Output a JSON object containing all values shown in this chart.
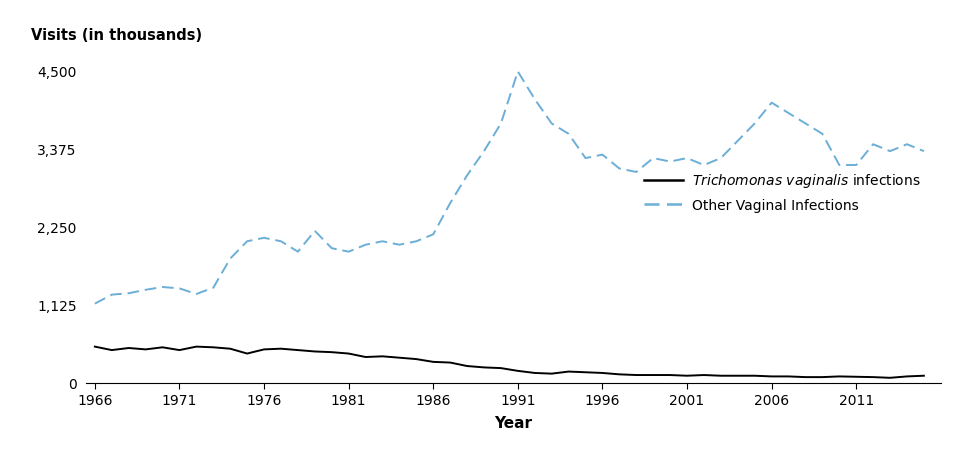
{
  "years": [
    1966,
    1967,
    1968,
    1969,
    1970,
    1971,
    1972,
    1973,
    1974,
    1975,
    1976,
    1977,
    1978,
    1979,
    1980,
    1981,
    1982,
    1983,
    1984,
    1985,
    1986,
    1987,
    1988,
    1989,
    1990,
    1991,
    1992,
    1993,
    1994,
    1995,
    1996,
    1997,
    1998,
    1999,
    2000,
    2001,
    2002,
    2003,
    2004,
    2005,
    2006,
    2007,
    2008,
    2009,
    2010,
    2011,
    2012,
    2013,
    2014,
    2015
  ],
  "trichomonas": [
    530,
    480,
    510,
    490,
    520,
    480,
    530,
    520,
    500,
    430,
    490,
    500,
    480,
    460,
    450,
    430,
    380,
    390,
    370,
    350,
    310,
    300,
    250,
    230,
    220,
    180,
    150,
    140,
    170,
    160,
    150,
    130,
    120,
    120,
    120,
    110,
    120,
    110,
    110,
    110,
    100,
    100,
    90,
    90,
    100,
    95,
    90,
    80,
    100,
    110
  ],
  "other_vaginal": [
    1150,
    1280,
    1300,
    1350,
    1390,
    1370,
    1290,
    1380,
    1800,
    2050,
    2100,
    2050,
    1900,
    2200,
    1950,
    1900,
    2000,
    2050,
    2000,
    2050,
    2150,
    2600,
    3000,
    3350,
    3750,
    4500,
    4100,
    3750,
    3600,
    3250,
    3300,
    3100,
    3050,
    3250,
    3200,
    3250,
    3150,
    3250,
    3500,
    3750,
    4050,
    3900,
    3750,
    3600,
    3150,
    3150,
    3450,
    3350,
    3450,
    3350
  ],
  "ylabel": "Visits (in thousands)",
  "xlabel": "Year",
  "ylim": [
    0,
    4750
  ],
  "xlim": [
    1965.5,
    2016
  ],
  "yticks": [
    0,
    1125,
    2250,
    3375,
    4500
  ],
  "ytick_labels": [
    "0",
    "1,125",
    "2,250",
    "3,375",
    "4,500"
  ],
  "xticks": [
    1966,
    1971,
    1976,
    1981,
    1986,
    1991,
    1996,
    2001,
    2006,
    2011
  ],
  "trichomonas_color": "#000000",
  "other_vaginal_color": "#6baed6",
  "legend_label_other": "Other Vaginal Infections",
  "background_color": "#ffffff"
}
